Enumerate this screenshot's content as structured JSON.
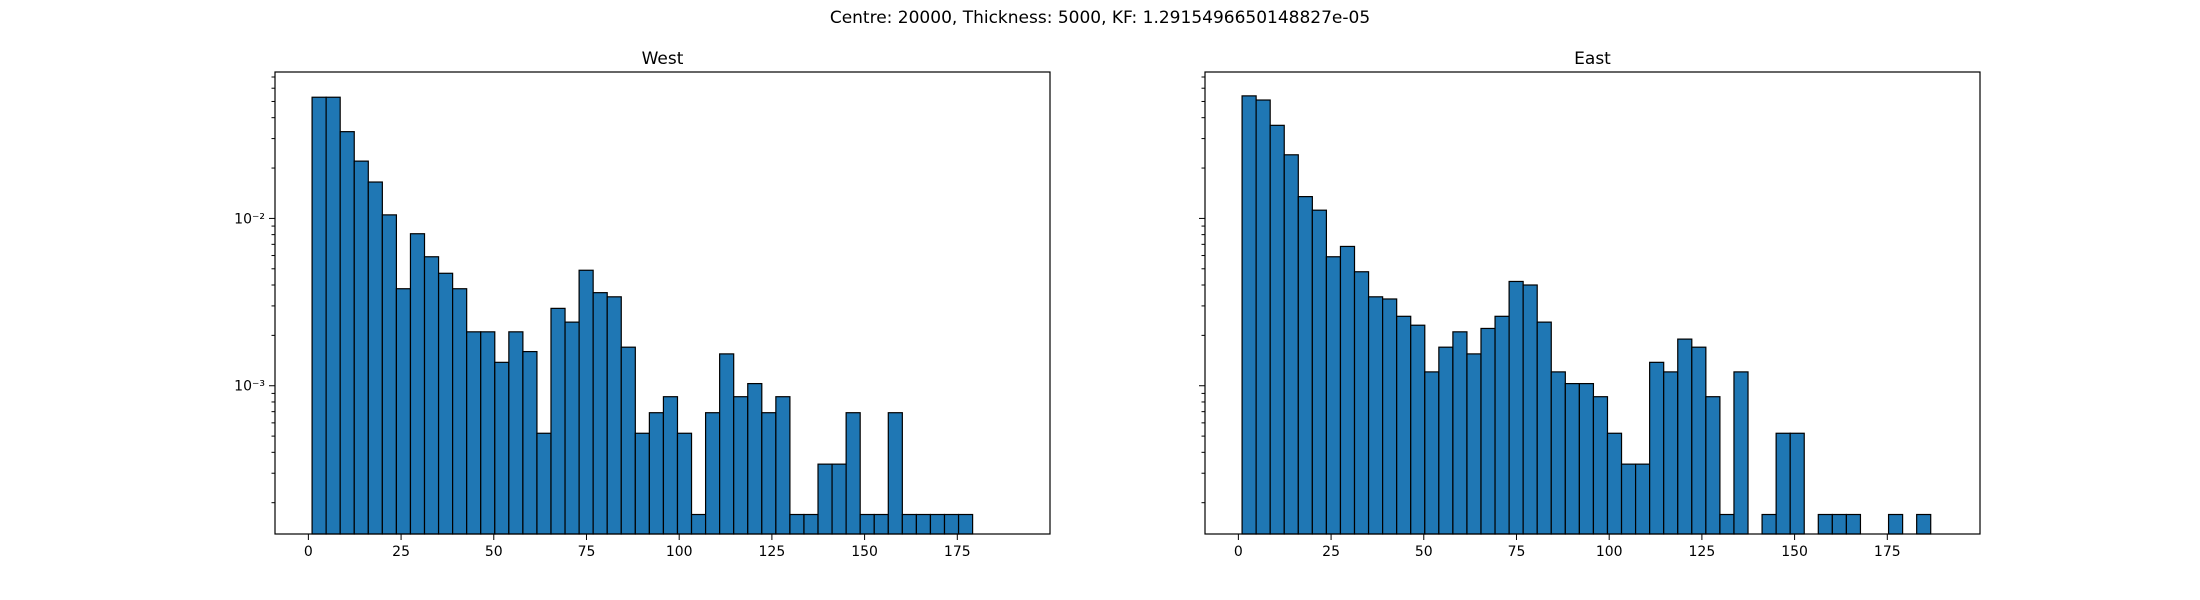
{
  "figure": {
    "suptitle": "Centre: 20000, Thickness: 5000, KF: 1.2915496650148827e-05"
  },
  "chart_data": [
    {
      "type": "bar",
      "subtype": "histogram",
      "title": "West",
      "xlabel": "",
      "ylabel": "",
      "yscale": "log",
      "xlim": [
        -9,
        200
      ],
      "ylim": [
        0.00013,
        0.075
      ],
      "xticks": [
        0,
        25,
        50,
        75,
        100,
        125,
        150,
        175
      ],
      "xtick_labels": [
        "0",
        "25",
        "50",
        "75",
        "100",
        "125",
        "150",
        "175"
      ],
      "yticks": [
        0.01,
        0.001
      ],
      "ytick_labels": [
        "10⁻²",
        "10⁻³"
      ],
      "bin_start": 1,
      "bin_width": 3.79,
      "values": [
        0.053,
        0.053,
        0.033,
        0.022,
        0.0165,
        0.0105,
        0.0038,
        0.0081,
        0.0059,
        0.0047,
        0.0038,
        0.0021,
        0.0021,
        0.00138,
        0.0021,
        0.0016,
        0.00052,
        0.0029,
        0.0024,
        0.0049,
        0.0036,
        0.0034,
        0.0017,
        0.00052,
        0.00069,
        0.00086,
        0.00052,
        0.00017,
        0.00069,
        0.00155,
        0.00086,
        0.00103,
        0.00069,
        0.00086,
        0.00017,
        0.00017,
        0.00034,
        0.00034,
        0.00069,
        0.00017,
        0.00017,
        0.00069,
        0.00017,
        0.00017,
        0.00017,
        0.00017,
        0.00017
      ],
      "grid": false,
      "color": "#1f77b4"
    },
    {
      "type": "bar",
      "subtype": "histogram",
      "title": "East",
      "xlabel": "",
      "ylabel": "",
      "yscale": "log",
      "xlim": [
        -9,
        200
      ],
      "ylim": [
        0.00013,
        0.075
      ],
      "xticks": [
        0,
        25,
        50,
        75,
        100,
        125,
        150,
        175
      ],
      "xtick_labels": [
        "0",
        "25",
        "50",
        "75",
        "100",
        "125",
        "150",
        "175"
      ],
      "yticks": [
        0.01,
        0.001
      ],
      "ytick_labels": [
        "",
        ""
      ],
      "bin_start": 1,
      "bin_width": 3.79,
      "values": [
        0.054,
        0.051,
        0.036,
        0.024,
        0.0135,
        0.0112,
        0.0059,
        0.0068,
        0.0048,
        0.0034,
        0.0033,
        0.0026,
        0.0023,
        0.00121,
        0.0017,
        0.0021,
        0.00155,
        0.0022,
        0.0026,
        0.0042,
        0.004,
        0.0024,
        0.00121,
        0.00103,
        0.00103,
        0.00086,
        0.00052,
        0.00034,
        0.00034,
        0.00138,
        0.00121,
        0.0019,
        0.0017,
        0.00086,
        0.00017,
        0.00121,
        0,
        0.00017,
        0.00052,
        0.00052,
        0,
        0.00017,
        0.00017,
        0.00017,
        0,
        0,
        0.00017,
        0,
        0.00017
      ],
      "grid": false,
      "color": "#1f77b4"
    }
  ]
}
